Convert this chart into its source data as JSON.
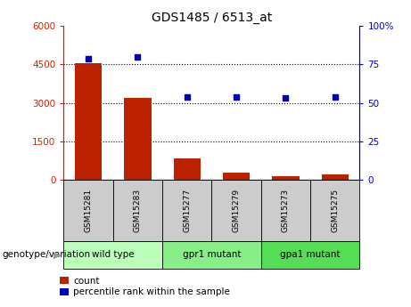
{
  "title": "GDS1485 / 6513_at",
  "samples": [
    "GSM15281",
    "GSM15283",
    "GSM15277",
    "GSM15279",
    "GSM15273",
    "GSM15275"
  ],
  "bar_values": [
    4550,
    3200,
    820,
    280,
    130,
    200
  ],
  "dot_values": [
    79,
    80,
    54,
    54,
    53,
    54
  ],
  "groups": [
    {
      "label": "wild type",
      "start": 0,
      "end": 2,
      "color": "#bbffbb"
    },
    {
      "label": "gpr1 mutant",
      "start": 2,
      "end": 4,
      "color": "#88ee88"
    },
    {
      "label": "gpa1 mutant",
      "start": 4,
      "end": 6,
      "color": "#55dd55"
    }
  ],
  "ylim_left": [
    0,
    6000
  ],
  "ylim_right": [
    0,
    100
  ],
  "yticks_left": [
    0,
    1500,
    3000,
    4500,
    6000
  ],
  "ytick_labels_left": [
    "0",
    "1500",
    "3000",
    "4500",
    "6000"
  ],
  "yticks_right": [
    0,
    25,
    50,
    75,
    100
  ],
  "ytick_labels_right": [
    "0",
    "25",
    "50",
    "75",
    "100%"
  ],
  "bar_color": "#bb2200",
  "dot_color": "#0000bb",
  "grid_yticks": [
    1500,
    3000,
    4500
  ],
  "ax_left_color": "#cc2200",
  "ax_right_color": "#0000cc",
  "legend_count_label": "count",
  "legend_pct_label": "percentile rank within the sample",
  "genotype_label": "genotype/variation",
  "sample_box_bg": "#cccccc",
  "figsize": [
    4.61,
    3.45
  ],
  "dpi": 100
}
